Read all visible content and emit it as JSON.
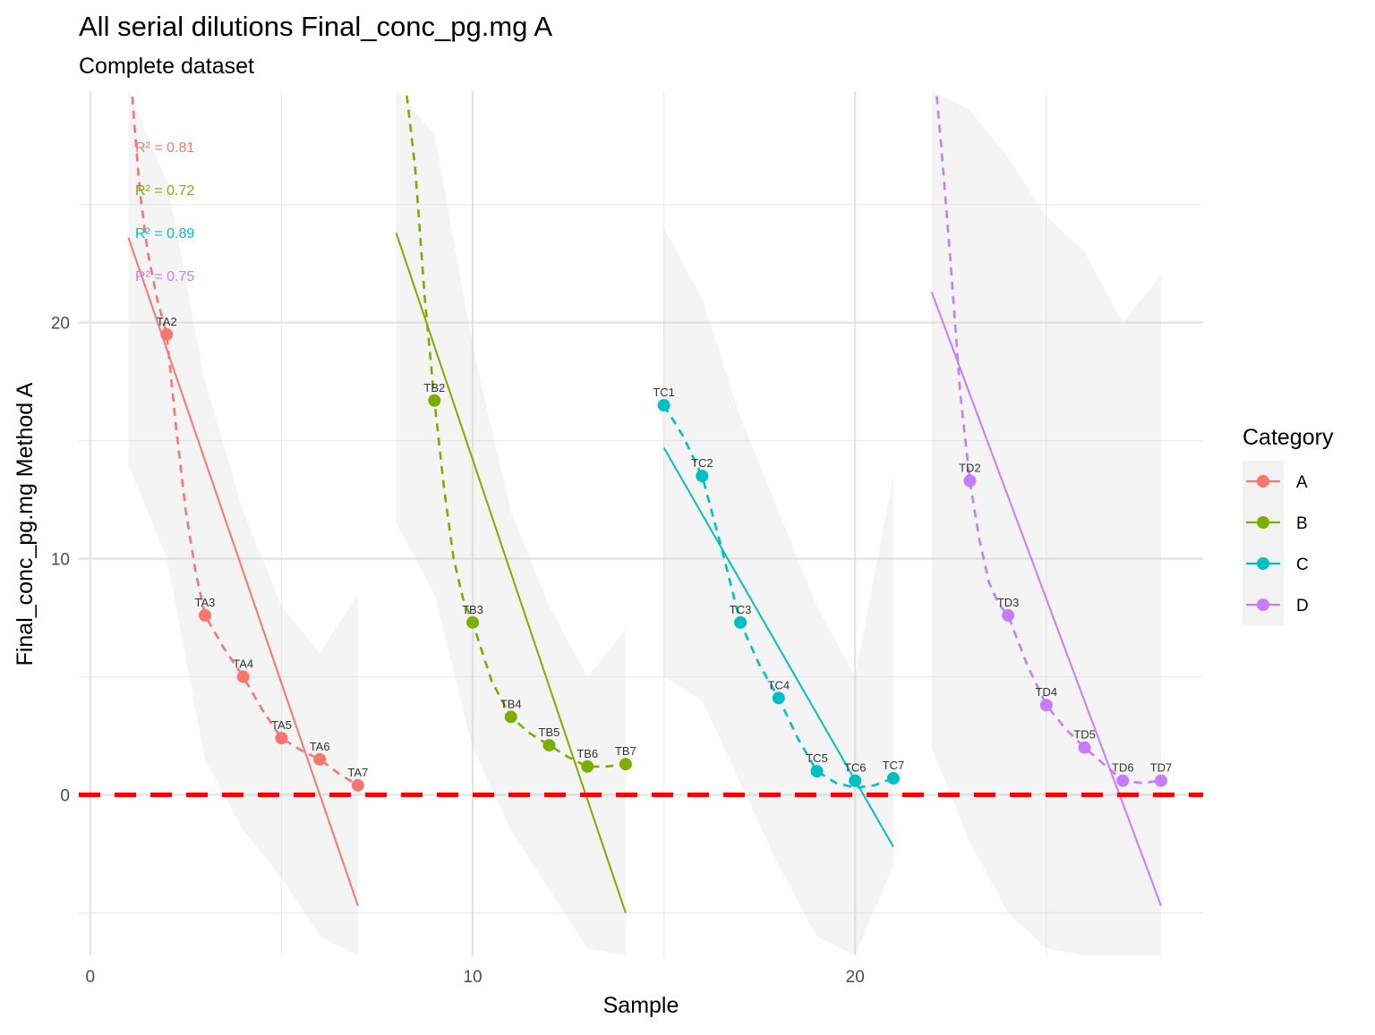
{
  "chart_data": {
    "type": "scatter",
    "title": "All serial dilutions Final_conc_pg.mg A",
    "subtitle": "Complete dataset",
    "xlabel": "Sample",
    "ylabel": "Final_conc_pg.mg Method A",
    "xlim": [
      -0.3,
      29.1
    ],
    "ylim": [
      -6.8,
      29.8
    ],
    "x_ticks": [
      0,
      10,
      20
    ],
    "y_ticks": [
      0,
      10,
      20
    ],
    "grid": true,
    "reference_line": {
      "y": 0,
      "color": "#ff0000",
      "style": "dashed"
    },
    "legend": {
      "title": "Category",
      "position": "right"
    },
    "series": [
      {
        "name": "A",
        "color": "#f8766d",
        "r2_label": "R² = 0.81",
        "points": [
          {
            "label": "TA2",
            "x": 2,
            "y": 19.5
          },
          {
            "label": "TA3",
            "x": 3,
            "y": 7.6
          },
          {
            "label": "TA4",
            "x": 4,
            "y": 5.0
          },
          {
            "label": "TA5",
            "x": 5,
            "y": 2.4
          },
          {
            "label": "TA6",
            "x": 6,
            "y": 1.5
          },
          {
            "label": "TA7",
            "x": 7,
            "y": 0.4
          }
        ],
        "linear_fit": {
          "x": [
            1.0,
            7.0
          ],
          "y": [
            23.6,
            -4.7
          ]
        },
        "smooth_curve": {
          "x": [
            1.0,
            1.15,
            1.3,
            1.5,
            1.75,
            2.0,
            2.25,
            2.5,
            2.75,
            3.0,
            3.5,
            4.0,
            4.5,
            5.0,
            5.5,
            6.0,
            6.5,
            7.0
          ],
          "y": [
            32.0,
            28.5,
            25.5,
            23.0,
            21.0,
            19.5,
            15.5,
            12.0,
            9.5,
            7.6,
            6.2,
            5.0,
            3.6,
            2.4,
            1.9,
            1.5,
            0.9,
            0.4
          ]
        },
        "ci_band": {
          "x": [
            1.0,
            2.0,
            3.0,
            4.0,
            5.0,
            6.0,
            7.0
          ],
          "upper": [
            33.0,
            26.0,
            17.5,
            12.0,
            8.0,
            6.0,
            8.5
          ],
          "lower": [
            14.0,
            10.0,
            1.5,
            -1.5,
            -3.5,
            -6.0,
            -6.8
          ]
        }
      },
      {
        "name": "B",
        "color": "#7cae00",
        "r2_label": "R² = 0.72",
        "points": [
          {
            "label": "TB2",
            "x": 9,
            "y": 16.7
          },
          {
            "label": "TB3",
            "x": 10,
            "y": 7.3
          },
          {
            "label": "TB4",
            "x": 11,
            "y": 3.3
          },
          {
            "label": "TB5",
            "x": 12,
            "y": 2.1
          },
          {
            "label": "TB6",
            "x": 13,
            "y": 1.2
          },
          {
            "label": "TB7",
            "x": 14,
            "y": 1.3
          }
        ],
        "linear_fit": {
          "x": [
            8.0,
            14.0
          ],
          "y": [
            23.8,
            -5.0
          ]
        },
        "smooth_curve": {
          "x": [
            8.0,
            8.25,
            8.5,
            8.75,
            9.0,
            9.25,
            9.5,
            9.75,
            10.0,
            10.5,
            11.0,
            11.5,
            12.0,
            12.5,
            13.0,
            13.5,
            14.0
          ],
          "y": [
            32.0,
            30.0,
            26.5,
            21.0,
            16.7,
            13.0,
            10.0,
            8.3,
            7.3,
            4.8,
            3.3,
            2.6,
            2.1,
            1.6,
            1.2,
            1.2,
            1.3
          ]
        },
        "ci_band": {
          "x": [
            8.0,
            9.0,
            10.0,
            11.0,
            12.0,
            13.0,
            14.0
          ],
          "upper": [
            33.0,
            28.0,
            19.0,
            12.0,
            8.0,
            5.0,
            7.0
          ],
          "lower": [
            11.5,
            8.5,
            2.0,
            -1.5,
            -4.0,
            -6.5,
            -6.8
          ]
        }
      },
      {
        "name": "C",
        "color": "#00bfc4",
        "r2_label": "R² = 0.89",
        "points": [
          {
            "label": "TC1",
            "x": 15,
            "y": 16.5
          },
          {
            "label": "TC2",
            "x": 16,
            "y": 13.5
          },
          {
            "label": "TC3",
            "x": 17,
            "y": 7.3
          },
          {
            "label": "TC4",
            "x": 18,
            "y": 4.1
          },
          {
            "label": "TC5",
            "x": 19,
            "y": 1.0
          },
          {
            "label": "TC6",
            "x": 20,
            "y": 0.6
          },
          {
            "label": "TC7",
            "x": 21,
            "y": 0.7
          }
        ],
        "linear_fit": {
          "x": [
            15.0,
            21.0
          ],
          "y": [
            14.7,
            -2.2
          ]
        },
        "smooth_curve": {
          "x": [
            15.0,
            15.5,
            16.0,
            16.5,
            17.0,
            17.5,
            18.0,
            18.5,
            19.0,
            19.5,
            20.0,
            20.5,
            21.0
          ],
          "y": [
            16.5,
            15.2,
            13.5,
            10.5,
            7.3,
            5.5,
            4.1,
            2.4,
            1.0,
            0.5,
            0.3,
            0.4,
            0.7
          ]
        },
        "ci_band": {
          "x": [
            15.0,
            16.0,
            17.0,
            18.0,
            19.0,
            20.0,
            21.0
          ],
          "upper": [
            24.0,
            21.0,
            16.0,
            12.0,
            8.0,
            5.0,
            13.5
          ],
          "lower": [
            5.0,
            4.0,
            0.5,
            -3.0,
            -6.0,
            -6.8,
            -3.0
          ]
        }
      },
      {
        "name": "D",
        "color": "#c77cff",
        "r2_label": "R² = 0.75",
        "points": [
          {
            "label": "TD2",
            "x": 23,
            "y": 13.3
          },
          {
            "label": "TD3",
            "x": 24,
            "y": 7.6
          },
          {
            "label": "TD4",
            "x": 25,
            "y": 3.8
          },
          {
            "label": "TD5",
            "x": 26,
            "y": 2.0
          },
          {
            "label": "TD6",
            "x": 27,
            "y": 0.6
          },
          {
            "label": "TD7",
            "x": 28,
            "y": 0.6
          }
        ],
        "linear_fit": {
          "x": [
            22.0,
            28.0
          ],
          "y": [
            21.3,
            -4.7
          ]
        },
        "smooth_curve": {
          "x": [
            22.0,
            22.25,
            22.5,
            22.75,
            23.0,
            23.25,
            23.5,
            23.75,
            24.0,
            24.5,
            25.0,
            25.5,
            26.0,
            26.5,
            27.0,
            27.5,
            28.0
          ],
          "y": [
            32.0,
            27.5,
            22.5,
            17.0,
            13.3,
            10.8,
            9.0,
            8.1,
            7.6,
            5.5,
            3.8,
            2.8,
            2.0,
            1.3,
            0.6,
            0.5,
            0.6
          ]
        },
        "ci_band": {
          "x": [
            22.0,
            23.0,
            24.0,
            25.0,
            26.0,
            27.0,
            28.0
          ],
          "upper": [
            33.0,
            29.0,
            27.0,
            24.5,
            23.0,
            20.0,
            22.0
          ],
          "lower": [
            2.0,
            -2.0,
            -5.0,
            -6.5,
            -6.8,
            -6.8,
            -6.8
          ]
        }
      }
    ]
  }
}
